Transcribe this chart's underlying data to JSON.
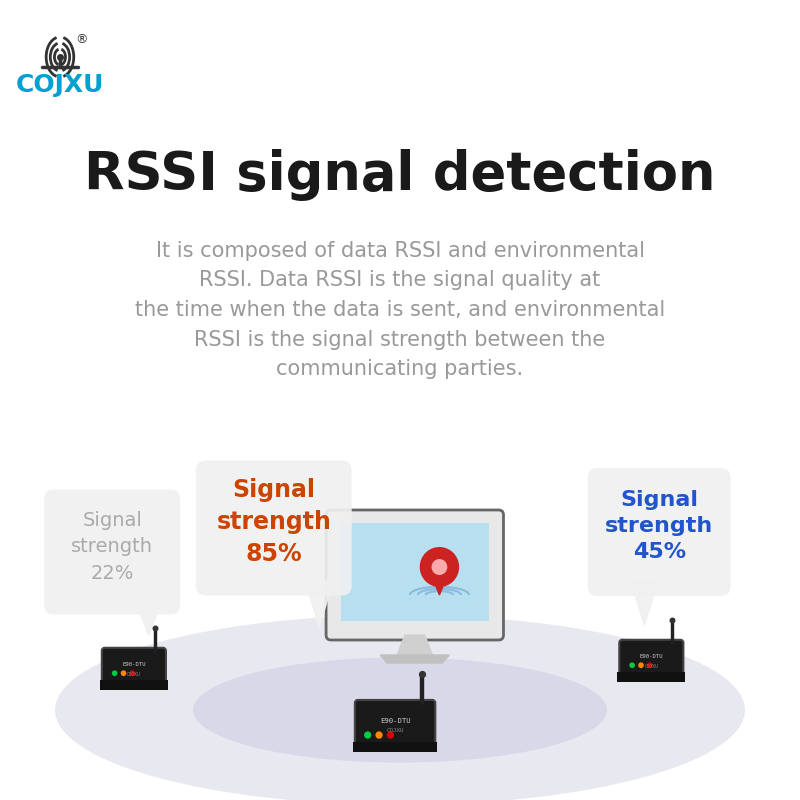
{
  "bg_color": "#ffffff",
  "title": "RSSI signal detection",
  "title_color": "#1a1a1a",
  "title_fontsize": 38,
  "subtitle": "It is composed of data RSSI and environmental\nRSSI. Data RSSI is the signal quality at\nthe time when the data is sent, and environmental\nRSSI is the signal strength between the\ncommunicating parties.",
  "subtitle_color": "#999999",
  "subtitle_fontsize": 15,
  "logo_text": "COJXU",
  "logo_color": "#00a0d0",
  "signal_left_label": "Signal\nstrength\n22%",
  "signal_left_color": "#aaaaaa",
  "signal_center_label": "Signal\nstrength\n85%",
  "signal_center_color": "#cc4400",
  "signal_right_label": "Signal\nstrength\n45%",
  "signal_right_color": "#2255cc",
  "ellipse_color": "#e8e8f0",
  "monitor_screen_color": "#b8dff0",
  "monitor_body_color": "#e8e8e8",
  "pin_color": "#cc2222",
  "bubble_color": "#f0f0f0"
}
